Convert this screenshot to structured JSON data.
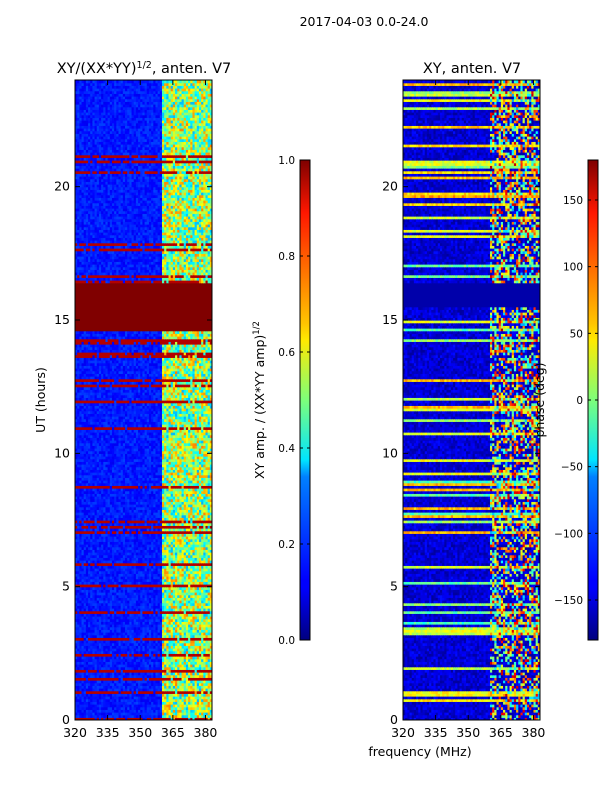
{
  "figure": {
    "suptitle": "2017-04-03 0.0-24.0",
    "shared_xlabel": "frequency (MHz)",
    "colormap": "jet"
  },
  "chart_data": [
    {
      "type": "heatmap",
      "title_main": "XY/(XX*YY)",
      "title_exp": "1/2",
      "title_tail": ", anten. V7",
      "ylabel": "UT (hours)",
      "xlim": [
        320,
        383
      ],
      "ylim": [
        0,
        24
      ],
      "xticks": [
        320,
        335,
        350,
        365,
        380
      ],
      "yticks": [
        0,
        5,
        10,
        15,
        20
      ],
      "colorbar": {
        "label_main": "XY amp. / (XX*YY amp)",
        "label_exp": "1/2",
        "range": [
          0.0,
          1.0
        ],
        "ticks": [
          "0.0",
          "0.2",
          "0.4",
          "0.6",
          "0.8",
          "1.0"
        ],
        "tick_values": [
          0.0,
          0.2,
          0.4,
          0.6,
          0.8,
          1.0
        ]
      },
      "features": {
        "saturated_band_hours": [
          14.6,
          16.4
        ],
        "high_amp_freq_start_mhz": 360,
        "baseline_value": 0.15
      }
    },
    {
      "type": "heatmap",
      "title": "XY, anten. V7",
      "ylabel": "",
      "xlim": [
        320,
        383
      ],
      "ylim": [
        0,
        24
      ],
      "xticks": [
        320,
        335,
        350,
        365,
        380
      ],
      "yticks": [
        0,
        5,
        10,
        15,
        20
      ],
      "colorbar": {
        "label": "phase (deg)",
        "range": [
          -180,
          180
        ],
        "ticks": [
          "−150",
          "−100",
          "−50",
          "0",
          "50",
          "100",
          "150"
        ],
        "tick_values": [
          -150,
          -100,
          -50,
          0,
          50,
          100,
          150
        ]
      },
      "features": {
        "uniform_band_hours": [
          15.5,
          16.4
        ],
        "baseline_value": -150
      }
    }
  ]
}
